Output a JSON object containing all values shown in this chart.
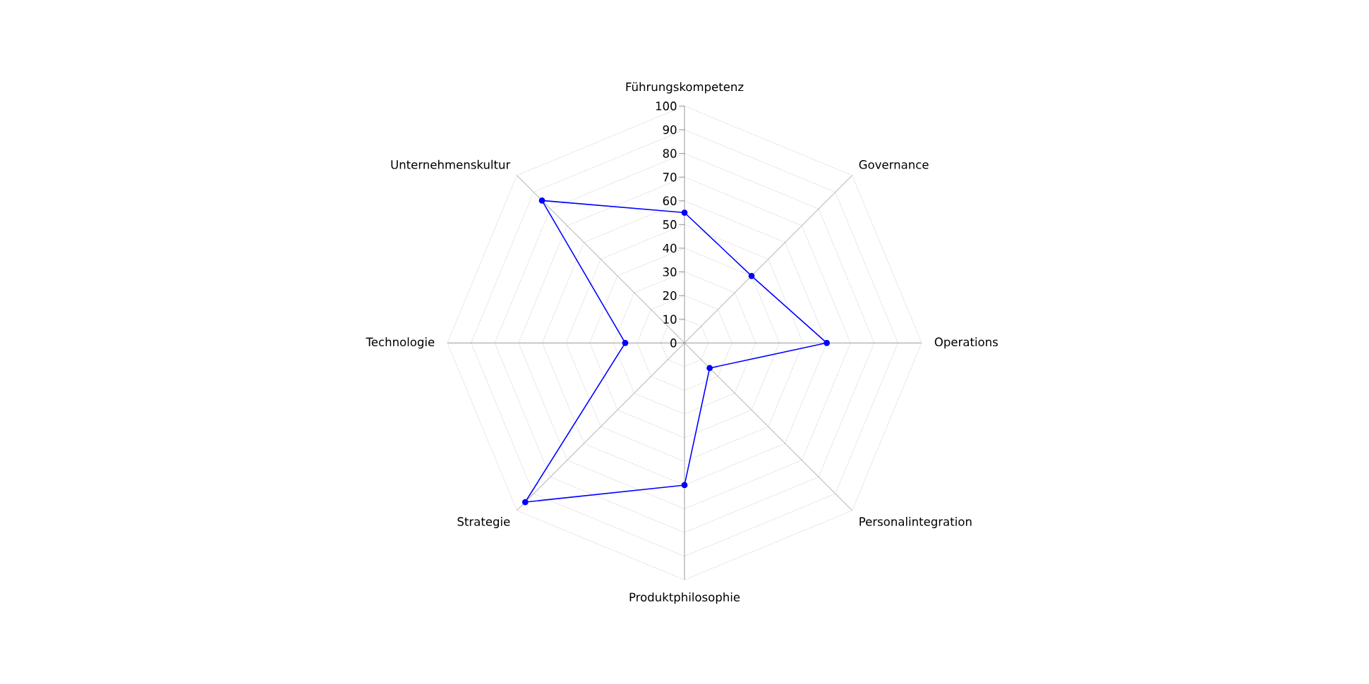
{
  "chart_data": {
    "type": "radar",
    "categories": [
      "Führungskompetenz",
      "Governance",
      "Operations",
      "Personalintegration",
      "Produktphilosophie",
      "Strategie",
      "Technologie",
      "Unternehmenskultur"
    ],
    "series": [
      {
        "color": "#0000ff",
        "values": [
          55,
          40,
          60,
          15,
          60,
          95,
          25,
          85
        ]
      }
    ],
    "ylim": [
      0,
      100
    ],
    "yticks": [
      0,
      10,
      20,
      30,
      40,
      50,
      60,
      70,
      80,
      90,
      100
    ],
    "grid": true,
    "marker": "circle",
    "line_style": "solid"
  }
}
